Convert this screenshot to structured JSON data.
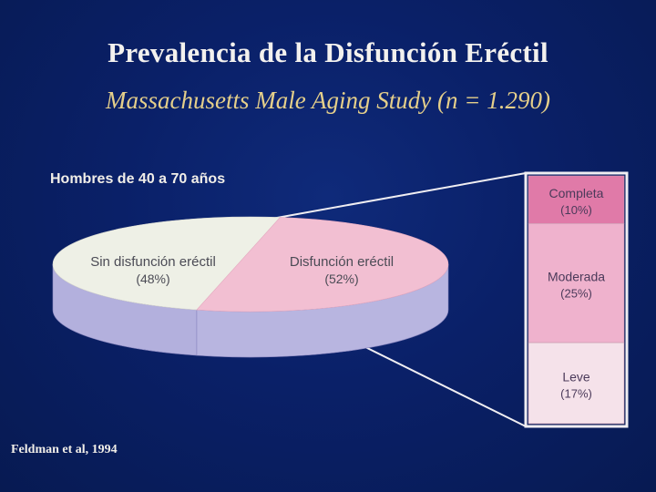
{
  "slide": {
    "title": "Prevalencia de la Disfunción Eréctil",
    "subtitle": "Massachusetts Male Aging Study (n = 1.290)",
    "group_label": "Hombres de 40 a 70 años",
    "credit": "Feldman et al, 1994"
  },
  "colors": {
    "background": "#0a2068",
    "title": "#f3f1ee",
    "subtitle": "#e5cf8a",
    "pie_top_none": "#eef0e6",
    "pie_top_ed": "#f2bfd2",
    "pie_side_none": "#b3b0dd",
    "pie_side_ed": "#b8b5e0",
    "bar_completa": "#e07aa8",
    "bar_moderada": "#efb2cd",
    "bar_leve": "#f5e2ea"
  },
  "chart_data": [
    {
      "type": "pie",
      "categories": [
        "Sin disfunción eréctil",
        "Disfunción eréctil"
      ],
      "values": [
        48,
        52
      ],
      "labels": [
        {
          "name": "Sin disfunción eréctil",
          "pct": "(48%)"
        },
        {
          "name": "Disfunción eréctil",
          "pct": "(52%)"
        }
      ]
    },
    {
      "type": "bar",
      "stacked": true,
      "categories": [
        "Completa",
        "Moderada",
        "Leve"
      ],
      "values": [
        10,
        25,
        17
      ],
      "labels": [
        {
          "name": "Completa",
          "pct": "(10%)"
        },
        {
          "name": "Moderada",
          "pct": "(25%)"
        },
        {
          "name": "Leve",
          "pct": "(17%)"
        }
      ]
    }
  ]
}
